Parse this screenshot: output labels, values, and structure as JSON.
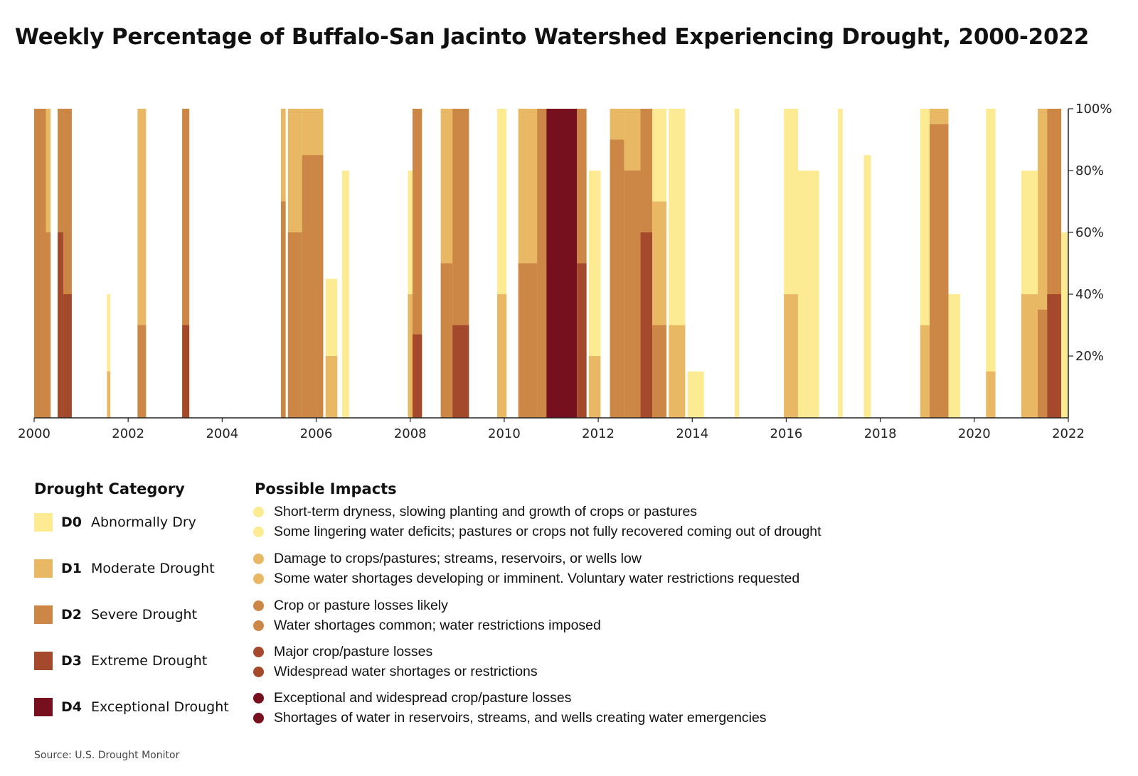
{
  "chart_data": {
    "type": "area",
    "title": "Weekly Percentage of Buffalo-San Jacinto Watershed Experiencing Drought, 2000-2022",
    "x_range": [
      2000,
      2022
    ],
    "x_ticks": [
      "2000",
      "2002",
      "2004",
      "2006",
      "2008",
      "2010",
      "2012",
      "2014",
      "2016",
      "2018",
      "2020",
      "2022"
    ],
    "y_range": [
      0,
      100
    ],
    "y_ticks": [
      "100%",
      "80%",
      "60%",
      "40%",
      "20%"
    ],
    "y_axis_side": "right",
    "grid": false,
    "colors": {
      "D0": "#fdeb93",
      "D1": "#e8b865",
      "D2": "#cc8645",
      "D3": "#a4492c",
      "D4": "#76101f"
    },
    "episodes_note_order": [
      "year_start",
      "year_end",
      "D0_pct",
      "D1_pct",
      "D2_pct",
      "D3_pct",
      "D4_pct"
    ],
    "episodes": [
      [
        2000.0,
        2000.25,
        100,
        100,
        100,
        0,
        0
      ],
      [
        2000.25,
        2000.35,
        100,
        100,
        60,
        0,
        0
      ],
      [
        2000.5,
        2000.62,
        100,
        100,
        100,
        60,
        0
      ],
      [
        2000.62,
        2000.8,
        100,
        100,
        100,
        40,
        0
      ],
      [
        2001.55,
        2001.62,
        40,
        15,
        0,
        0,
        0
      ],
      [
        2002.2,
        2002.38,
        100,
        100,
        30,
        0,
        0
      ],
      [
        2003.15,
        2003.3,
        100,
        100,
        100,
        30,
        0
      ],
      [
        2005.25,
        2005.35,
        100,
        100,
        70,
        0,
        0
      ],
      [
        2005.4,
        2005.7,
        100,
        100,
        60,
        0,
        0
      ],
      [
        2005.7,
        2006.15,
        100,
        100,
        85,
        0,
        0
      ],
      [
        2006.2,
        2006.45,
        45,
        20,
        0,
        0,
        0
      ],
      [
        2006.55,
        2006.7,
        80,
        0,
        0,
        0,
        0
      ],
      [
        2007.95,
        2008.05,
        80,
        40,
        0,
        0,
        0
      ],
      [
        2008.05,
        2008.25,
        100,
        100,
        100,
        27,
        0
      ],
      [
        2008.65,
        2008.9,
        100,
        100,
        50,
        0,
        0
      ],
      [
        2008.9,
        2009.25,
        100,
        100,
        100,
        30,
        0
      ],
      [
        2009.85,
        2010.05,
        100,
        40,
        0,
        0,
        0
      ],
      [
        2010.3,
        2010.7,
        100,
        100,
        50,
        0,
        0
      ],
      [
        2010.7,
        2010.9,
        100,
        100,
        100,
        0,
        0
      ],
      [
        2010.9,
        2011.55,
        100,
        100,
        100,
        100,
        100
      ],
      [
        2011.55,
        2011.75,
        100,
        100,
        100,
        50,
        0
      ],
      [
        2011.8,
        2012.05,
        80,
        20,
        0,
        0,
        0
      ],
      [
        2012.25,
        2012.55,
        100,
        100,
        90,
        0,
        0
      ],
      [
        2012.55,
        2012.9,
        100,
        100,
        80,
        0,
        0
      ],
      [
        2012.9,
        2013.15,
        100,
        100,
        100,
        60,
        0
      ],
      [
        2013.15,
        2013.45,
        100,
        70,
        30,
        0,
        0
      ],
      [
        2013.5,
        2013.85,
        100,
        30,
        0,
        0,
        0
      ],
      [
        2013.9,
        2014.25,
        15,
        0,
        0,
        0,
        0
      ],
      [
        2014.9,
        2015.0,
        100,
        0,
        0,
        0,
        0
      ],
      [
        2015.95,
        2016.25,
        100,
        40,
        0,
        0,
        0
      ],
      [
        2016.25,
        2016.7,
        80,
        0,
        0,
        0,
        0
      ],
      [
        2017.1,
        2017.2,
        100,
        0,
        0,
        0,
        0
      ],
      [
        2017.65,
        2017.8,
        85,
        0,
        0,
        0,
        0
      ],
      [
        2018.85,
        2019.05,
        100,
        30,
        0,
        0,
        0
      ],
      [
        2019.05,
        2019.45,
        100,
        100,
        95,
        0,
        0
      ],
      [
        2019.45,
        2019.7,
        40,
        0,
        0,
        0,
        0
      ],
      [
        2020.25,
        2020.45,
        100,
        15,
        0,
        0,
        0
      ],
      [
        2021.0,
        2021.35,
        80,
        40,
        0,
        0,
        0
      ],
      [
        2021.35,
        2021.55,
        100,
        100,
        35,
        0,
        0
      ],
      [
        2021.55,
        2021.85,
        100,
        100,
        100,
        40,
        0
      ],
      [
        2021.85,
        2022.0,
        60,
        0,
        0,
        0,
        0
      ]
    ]
  },
  "legend": {
    "category_heading": "Drought Category",
    "impacts_heading": "Possible Impacts",
    "categories": [
      {
        "code": "D0",
        "name": "Abnormally Dry",
        "color": "#fdeb93",
        "impacts": [
          "Short-term dryness, slowing planting and growth of crops or pastures",
          "Some lingering water deficits; pastures or crops not fully recovered coming out of drought"
        ]
      },
      {
        "code": "D1",
        "name": "Moderate Drought",
        "color": "#e8b865",
        "impacts": [
          "Damage to crops/pastures; streams, reservoirs, or wells low",
          "Some water shortages developing or imminent. Voluntary water restrictions requested"
        ]
      },
      {
        "code": "D2",
        "name": "Severe Drought",
        "color": "#cc8645",
        "impacts": [
          "Crop or pasture losses likely",
          "Water shortages common; water restrictions imposed"
        ]
      },
      {
        "code": "D3",
        "name": "Extreme Drought",
        "color": "#a4492c",
        "impacts": [
          "Major crop/pasture losses",
          "Widespread water shortages or restrictions"
        ]
      },
      {
        "code": "D4",
        "name": "Exceptional Drought",
        "color": "#76101f",
        "impacts": [
          "Exceptional and widespread crop/pasture losses",
          "Shortages of water in reservoirs, streams, and wells creating water emergencies"
        ]
      }
    ]
  },
  "source": "Source: U.S. Drought Monitor"
}
